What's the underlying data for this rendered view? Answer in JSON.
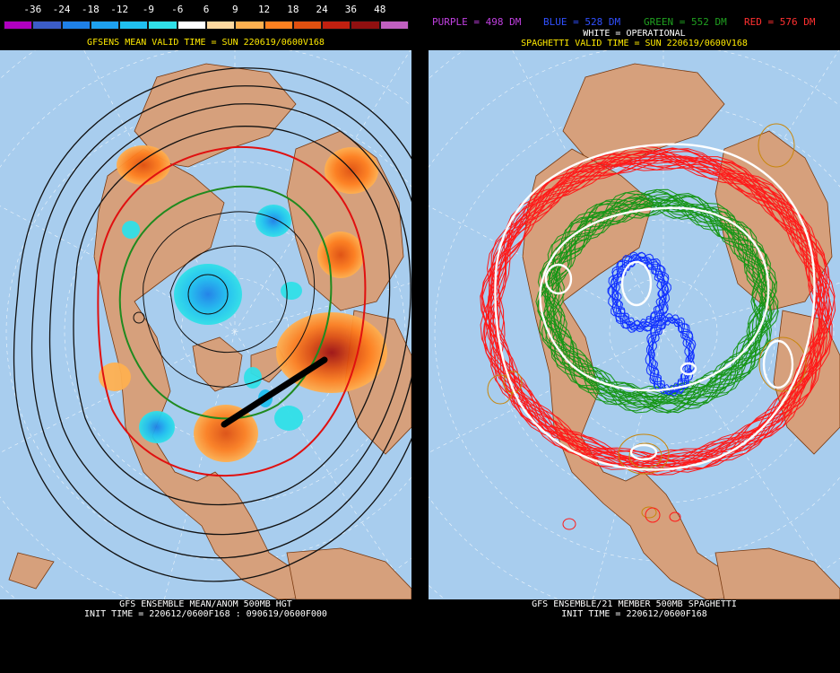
{
  "left": {
    "legend": {
      "ticks": [
        "-36",
        "-24",
        "-18",
        "-12",
        "-9",
        "-6",
        "6",
        "9",
        "12",
        "18",
        "24",
        "36",
        "48"
      ],
      "colors": [
        "#b000c0",
        "#3c5cc8",
        "#1f80e8",
        "#1ea0f0",
        "#20c0f0",
        "#30e0e8",
        "#ffffff",
        "#ffd9a0",
        "#ffb050",
        "#ff8020",
        "#e05010",
        "#c02010",
        "#901010",
        "#c060c0"
      ]
    },
    "title": "GFSENS MEAN VALID TIME = SUN 220619/0600V168",
    "footer_line1": "GFS ENSEMBLE MEAN/ANOM 500MB HGT",
    "footer_line2": "INIT TIME = 220612/0600F168 : 090619/0600F000"
  },
  "right": {
    "header": {
      "purple": "PURPLE = 498 DM",
      "blue": "BLUE = 528 DM",
      "green": "GREEN = 552 DM",
      "red": "RED = 576 DM",
      "white": "WHITE = OPERATIONAL"
    },
    "title": "SPAGHETTI VALID TIME = SUN 220619/0600V168",
    "footer_line1": "GFS ENSEMBLE/21 MEMBER 500MB SPAGHETTI",
    "footer_line2": "INIT TIME = 220612/0600F168"
  },
  "colors": {
    "ocean": "#a8cdee",
    "land": "#d6a07c",
    "border": "#7a3a10",
    "purple_label": "#c040e0",
    "blue_label": "#3050ff",
    "green_label": "#20a020",
    "red_label": "#ff3030"
  }
}
